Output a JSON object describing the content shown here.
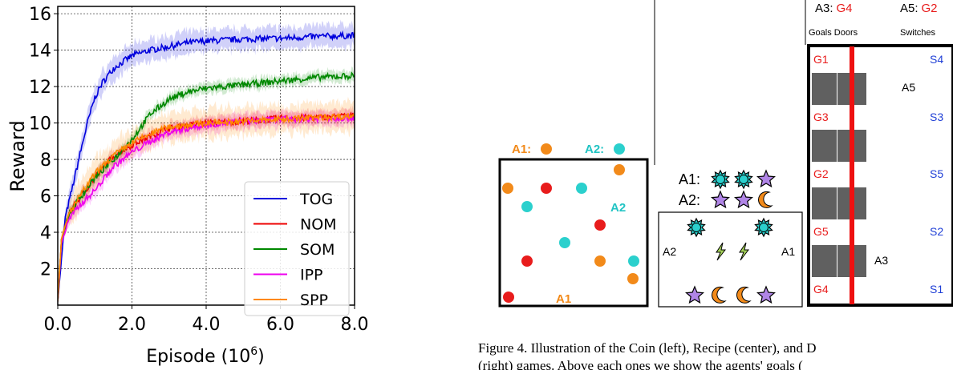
{
  "chart_data": {
    "type": "line",
    "xlabel_text": "Episode (10",
    "xlabel_exp": "6",
    "xlabel_close": ")",
    "ylabel": "Reward",
    "xlim": [
      0,
      8
    ],
    "ylim": [
      0,
      16.4
    ],
    "xticks": [
      "0.0",
      "2.0",
      "4.0",
      "6.0",
      "8.0"
    ],
    "xtick_values": [
      0,
      2,
      4,
      6,
      8
    ],
    "yticks": [
      "2",
      "4",
      "6",
      "8",
      "10",
      "12",
      "14",
      "16"
    ],
    "ytick_values": [
      2,
      4,
      6,
      8,
      10,
      12,
      14,
      16
    ],
    "grid": true,
    "legend_position": "lower-right",
    "series": [
      {
        "name": "TOG",
        "color": "#0000dd",
        "band": 0.6,
        "x": [
          0,
          0.2,
          0.4,
          0.6,
          0.8,
          1.0,
          1.2,
          1.5,
          2.0,
          2.5,
          3.0,
          3.5,
          4.0,
          5.0,
          6.0,
          7.0,
          8.0
        ],
        "y": [
          0.2,
          4.8,
          6.5,
          8.3,
          10.0,
          11.4,
          12.2,
          13.0,
          13.7,
          14.0,
          14.2,
          14.4,
          14.5,
          14.6,
          14.65,
          14.75,
          14.8
        ]
      },
      {
        "name": "NOM",
        "color": "#ee0000",
        "band": 0.35,
        "x": [
          0,
          0.1,
          0.3,
          0.6,
          1.0,
          1.5,
          2.0,
          2.5,
          3.0,
          4.0,
          5.0,
          6.0,
          7.0,
          8.0
        ],
        "y": [
          0.2,
          3.6,
          5.0,
          5.9,
          7.0,
          8.2,
          8.8,
          9.3,
          9.7,
          10.0,
          10.1,
          10.25,
          10.3,
          10.4
        ]
      },
      {
        "name": "SOM",
        "color": "#008800",
        "band": 0.3,
        "x": [
          0,
          0.1,
          0.3,
          0.6,
          1.0,
          1.5,
          2.0,
          2.5,
          3.0,
          3.5,
          4.0,
          5.0,
          6.0,
          7.0,
          8.0
        ],
        "y": [
          0.2,
          3.6,
          5.0,
          5.9,
          7.0,
          8.0,
          9.1,
          10.5,
          11.3,
          11.7,
          11.9,
          12.1,
          12.3,
          12.5,
          12.6
        ]
      },
      {
        "name": "IPP",
        "color": "#ee00ee",
        "band": 0.4,
        "x": [
          0,
          0.1,
          0.3,
          0.6,
          1.0,
          1.5,
          2.0,
          2.5,
          3.0,
          4.0,
          5.0,
          6.0,
          7.0,
          8.0
        ],
        "y": [
          0.2,
          3.4,
          4.7,
          5.5,
          6.3,
          7.6,
          8.4,
          9.0,
          9.5,
          9.9,
          10.1,
          10.2,
          10.25,
          10.3
        ]
      },
      {
        "name": "SPP",
        "color": "#ff8800",
        "band": 0.8,
        "x": [
          0,
          0.1,
          0.3,
          0.6,
          1.0,
          1.5,
          2.0,
          2.5,
          3.0,
          4.0,
          5.0,
          6.0,
          7.0,
          8.0
        ],
        "y": [
          0.2,
          3.6,
          5.0,
          6.0,
          7.2,
          8.2,
          8.9,
          9.4,
          9.8,
          10.0,
          10.1,
          10.2,
          10.3,
          10.4
        ]
      }
    ]
  },
  "figure": {
    "coin": {
      "a1_label": "A1:",
      "a2_label": "A2:",
      "inside_a2": "A2",
      "inside_a1": "A1",
      "colors": {
        "orange": "#f28a1a",
        "cyan": "#2bd0cd",
        "red": "#e81c1c",
        "a1": "#f28a1a",
        "a2": "#22c4c4"
      }
    },
    "recipe": {
      "a1_label": "A1:",
      "a2_label": "A2:",
      "left_label": "A2",
      "right_label": "A1"
    },
    "doors": {
      "a3_head": "A3:",
      "a3_goal": "G4",
      "a5_head": "A5:",
      "a5_goal": "G2",
      "sub_goals_doors": "Goals Doors",
      "sub_switches": "Switches",
      "goals": [
        "G1",
        "G3",
        "G2",
        "G5",
        "G4"
      ],
      "switches": [
        "S4",
        "S3",
        "S5",
        "S2",
        "S1"
      ],
      "a5_label": "A5",
      "a3_label": "A3"
    },
    "caption_line1": "Figure 4. Illustration of the Coin (left), Recipe (center), and D",
    "caption_line2": "(right) games. Above each ones we show the agents' goals ("
  }
}
